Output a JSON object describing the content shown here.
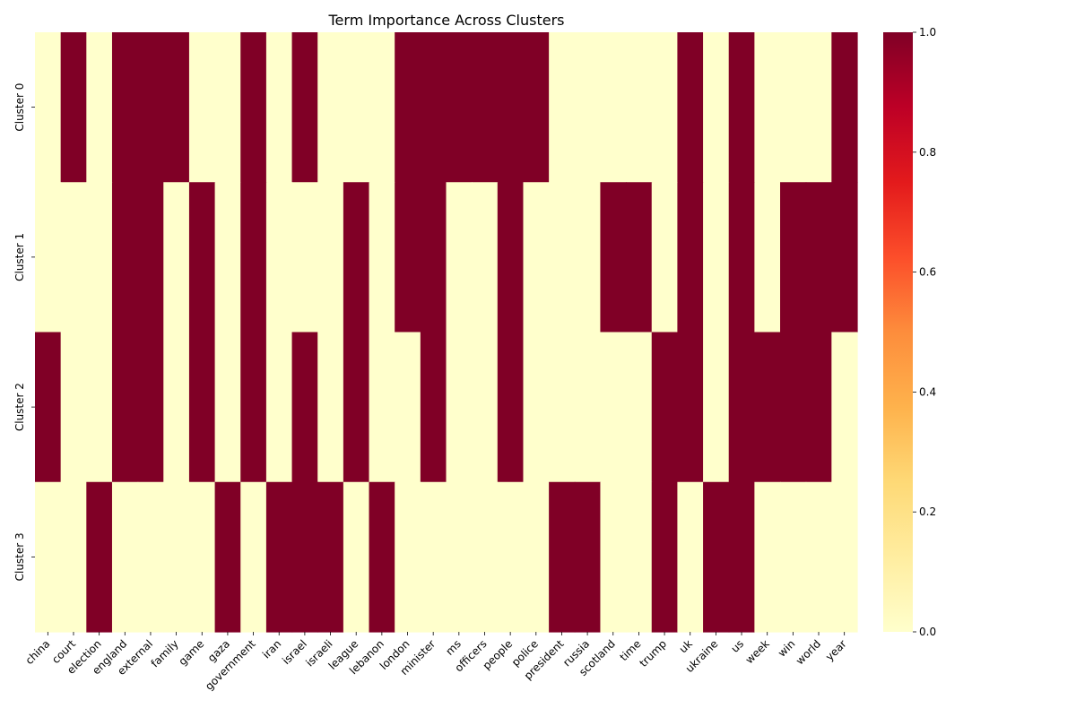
{
  "chart_data": {
    "type": "heatmap",
    "title": "Term Importance Across Clusters",
    "xlabel": "",
    "ylabel": "",
    "colormap": "YlOrRd",
    "colorbar": {
      "range": [
        0,
        1
      ],
      "ticks": [
        "0.0",
        "0.2",
        "0.4",
        "0.6",
        "0.8",
        "1.0"
      ]
    },
    "rows": [
      "Cluster 0",
      "Cluster 1",
      "Cluster 2",
      "Cluster 3"
    ],
    "columns": [
      "china",
      "court",
      "election",
      "england",
      "external",
      "family",
      "game",
      "gaza",
      "government",
      "iran",
      "israel",
      "israeli",
      "league",
      "lebanon",
      "london",
      "minister",
      "ms",
      "officers",
      "people",
      "police",
      "president",
      "russia",
      "scotland",
      "time",
      "trump",
      "uk",
      "ukraine",
      "us",
      "week",
      "win",
      "world",
      "year"
    ],
    "values": [
      [
        0,
        1,
        0,
        1,
        1,
        1,
        0,
        0,
        1,
        0,
        1,
        0,
        0,
        0,
        1,
        1,
        1,
        1,
        1,
        1,
        0,
        0,
        0,
        0,
        0,
        1,
        0,
        1,
        0,
        0,
        0,
        1
      ],
      [
        0,
        0,
        0,
        1,
        1,
        0,
        1,
        0,
        1,
        0,
        0,
        0,
        1,
        0,
        1,
        1,
        0,
        0,
        1,
        0,
        0,
        0,
        1,
        1,
        0,
        1,
        0,
        1,
        0,
        1,
        1,
        1
      ],
      [
        1,
        0,
        0,
        1,
        1,
        0,
        1,
        0,
        1,
        0,
        1,
        0,
        1,
        0,
        0,
        1,
        0,
        0,
        1,
        0,
        0,
        0,
        0,
        0,
        1,
        1,
        0,
        1,
        1,
        1,
        1,
        0
      ],
      [
        0,
        0,
        1,
        0,
        0,
        0,
        0,
        1,
        0,
        1,
        1,
        1,
        0,
        1,
        0,
        0,
        0,
        0,
        0,
        0,
        1,
        1,
        0,
        0,
        1,
        0,
        1,
        1,
        0,
        0,
        0,
        0
      ]
    ],
    "colors": {
      "low": "#ffffcc",
      "high": "#800026"
    }
  }
}
